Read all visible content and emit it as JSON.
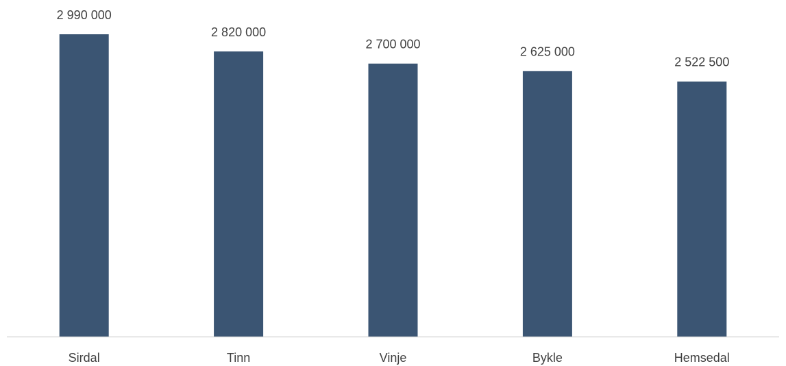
{
  "chart_data": {
    "type": "bar",
    "categories": [
      "Sirdal",
      "Tinn",
      "Vinje",
      "Bykle",
      "Hemsedal"
    ],
    "values": [
      2990000,
      2820000,
      2700000,
      2625000,
      2522500
    ],
    "value_labels": [
      "2 990 000",
      "2 820 000",
      "2 700 000",
      "2 625 000",
      "2 522 500"
    ],
    "color": "#3b5573"
  }
}
